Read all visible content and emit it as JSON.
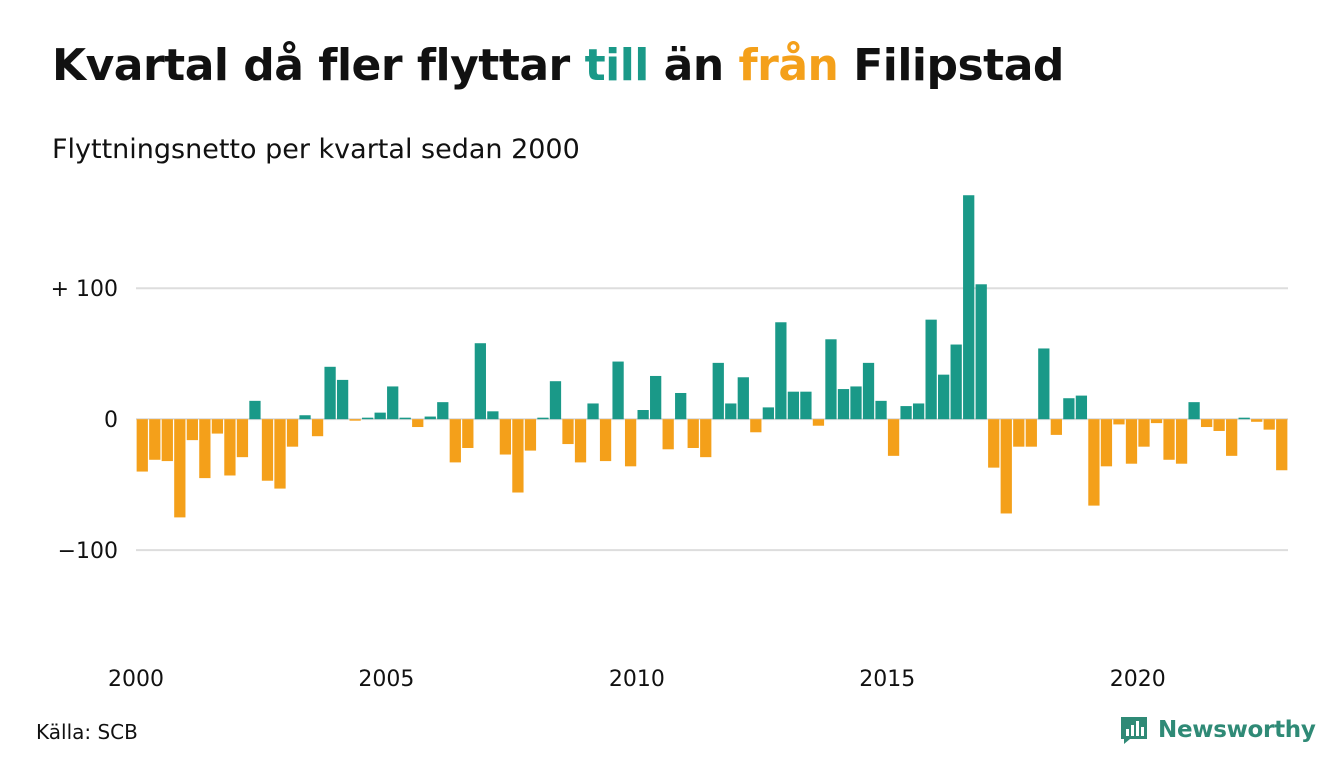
{
  "title": {
    "part1": "Kvartal då fler flyttar ",
    "part2": "till",
    "part3": " än ",
    "part4": "från",
    "part5": " Filipstad"
  },
  "subtitle": "Flyttningsnetto per kvartal sedan 2000",
  "source": "Källa: SCB",
  "brand": "Newsworthy",
  "colors": {
    "positive": "#1a9988",
    "negative": "#f4a01a",
    "grid": "#dddddd",
    "text": "#111111",
    "brand": "#2f8a76"
  },
  "chart_data": {
    "type": "bar",
    "x_start_year": 2000,
    "periods_per_year": 4,
    "ylim": [
      -190,
      175
    ],
    "yticks": [
      100,
      0,
      -100
    ],
    "ytick_labels": [
      "+ 100",
      "0",
      "−100"
    ],
    "xticks": [
      2000,
      2005,
      2010,
      2015,
      2020
    ],
    "grid": true,
    "values": [
      -40,
      -31,
      -32,
      -75,
      -16,
      -45,
      -11,
      -43,
      -29,
      14,
      -47,
      -53,
      -21,
      3,
      -13,
      40,
      30,
      -1,
      1,
      5,
      25,
      0,
      -6,
      2,
      13,
      -33,
      -22,
      58,
      6,
      -27,
      -56,
      -24,
      0,
      29,
      -19,
      -33,
      12,
      -32,
      44,
      -36,
      7,
      33,
      -23,
      20,
      -22,
      -29,
      43,
      12,
      32,
      -10,
      9,
      74,
      21,
      21,
      -5,
      61,
      23,
      25,
      43,
      14,
      -28,
      10,
      12,
      76,
      34,
      57,
      171,
      103,
      -37,
      -72,
      -21,
      -21,
      54,
      -12,
      16,
      18,
      -66,
      -36,
      -4,
      -34,
      -21,
      -3,
      -31,
      -34,
      13,
      -6,
      -9,
      -28,
      0,
      -2,
      -8,
      -39
    ]
  }
}
